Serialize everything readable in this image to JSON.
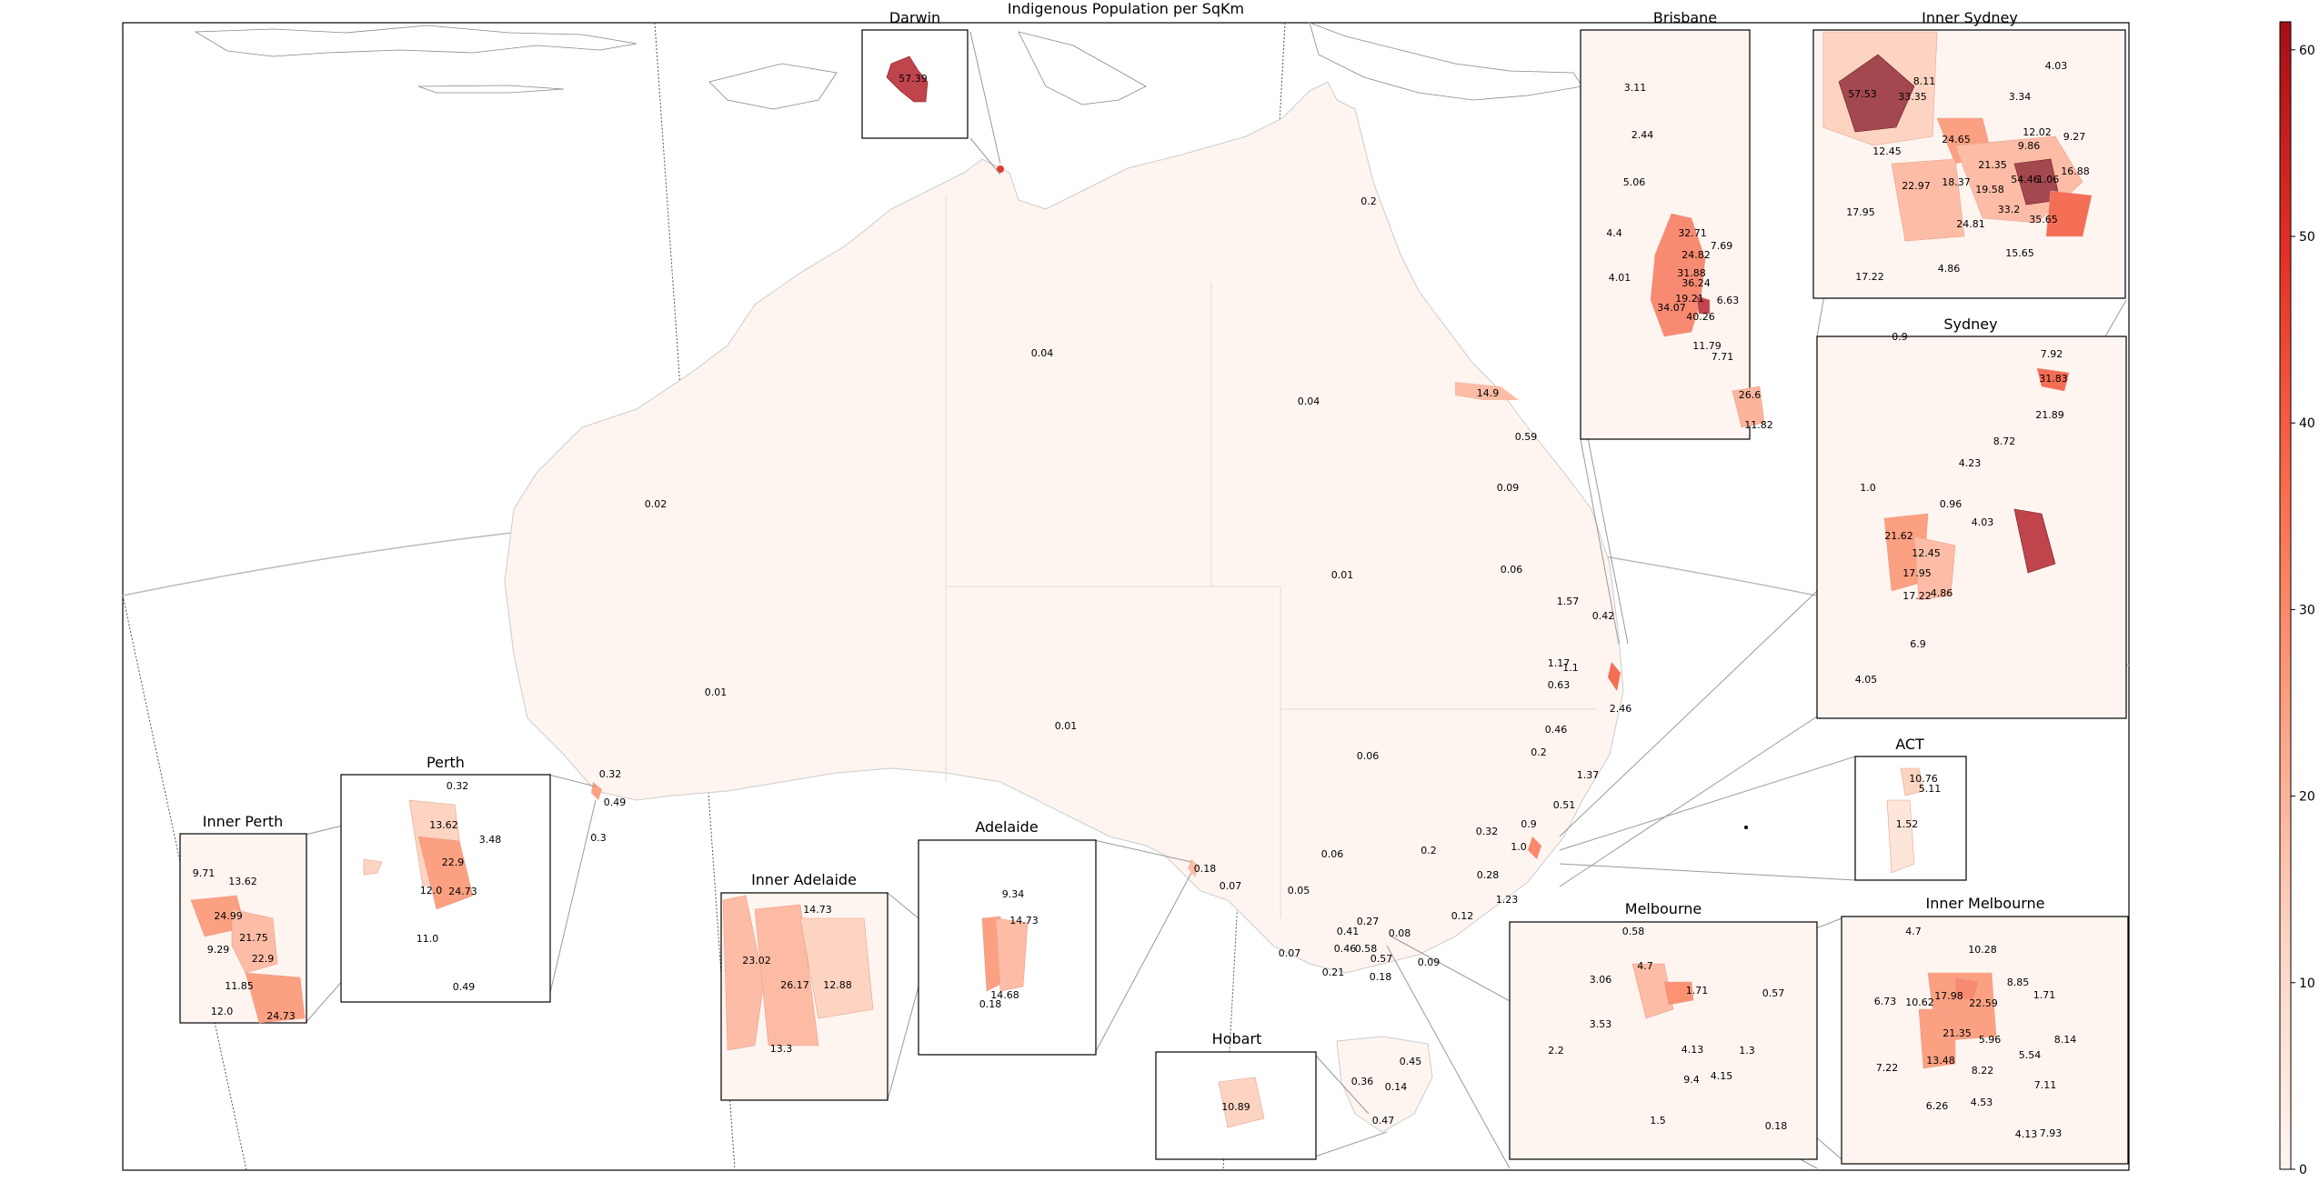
{
  "title": "Indigenous Population per SqKm",
  "colorbar": {
    "min": 0,
    "max": 61.5,
    "ticks": [
      "0",
      "10",
      "20",
      "30",
      "40",
      "50",
      "60"
    ],
    "color_low": "#fff5f0",
    "color_high": "#a50f15"
  },
  "mainland_labels": [
    "0.2",
    "0.04",
    "0.04",
    "0.02",
    "14.9",
    "0.59",
    "0.09",
    "0.01",
    "0.06",
    "1.57",
    "0.42",
    "1.17",
    "1.1",
    "0.63",
    "2.46",
    "0.46",
    "0.01",
    "0.01",
    "0.06",
    "0.2",
    "1.37",
    "0.51",
    "0.32",
    "0.49",
    "0.3",
    "0.9",
    "0.32",
    "1.0",
    "0.28",
    "0.2",
    "0.06",
    "1.23",
    "0.12",
    "0.18",
    "0.07",
    "0.05",
    "0.27",
    "0.41",
    "0.08",
    "0.46",
    "0.58",
    "0.57",
    "0.07",
    "0.21",
    "0.18",
    "0.09",
    "0.45",
    "0.36",
    "0.14",
    "0.47"
  ],
  "insets": [
    {
      "name": "Darwin",
      "labels": [
        "57.39"
      ]
    },
    {
      "name": "Brisbane",
      "labels": [
        "3.11",
        "2.44",
        "5.06",
        "4.4",
        "32.71",
        "24.82",
        "7.69",
        "4.01",
        "31.88",
        "36.24",
        "19.21",
        "34.07",
        "40.26",
        "6.63",
        "11.79",
        "7.71",
        "26.6",
        "11.82"
      ]
    },
    {
      "name": "Inner Sydney",
      "labels": [
        "57.53",
        "8.11",
        "33.35",
        "4.03",
        "3.34",
        "24.65",
        "12.02",
        "12.45",
        "9.86",
        "9.27",
        "21.35",
        "22.97",
        "18.37",
        "19.58",
        "54.46",
        "1.06",
        "16.88",
        "17.95",
        "33.2",
        "24.81",
        "35.65",
        "15.65",
        "17.22",
        "4.86"
      ]
    },
    {
      "name": "Sydney",
      "labels": [
        "0.9",
        "7.92",
        "31.83",
        "21.89",
        "8.72",
        "4.23",
        "1.0",
        "0.96",
        "4.03",
        "21.62",
        "12.45",
        "17.95",
        "17.22",
        "4.86",
        "6.9",
        "4.05"
      ]
    },
    {
      "name": "ACT",
      "labels": [
        "10.76",
        "5.11",
        "1.52"
      ]
    },
    {
      "name": "Perth",
      "labels": [
        "0.32",
        "13.62",
        "3.48",
        "22.9",
        "12.0",
        "24.73",
        "11.0",
        "0.49"
      ]
    },
    {
      "name": "Inner Perth",
      "labels": [
        "9.71",
        "13.62",
        "24.99",
        "21.75",
        "9.29",
        "22.9",
        "11.85",
        "12.0",
        "24.73"
      ]
    },
    {
      "name": "Adelaide",
      "labels": [
        "9.34",
        "14.73",
        "0.18",
        "14.68"
      ]
    },
    {
      "name": "Inner Adelaide",
      "labels": [
        "14.73",
        "23.02",
        "26.17",
        "12.88",
        "13.3"
      ]
    },
    {
      "name": "Hobart",
      "labels": [
        "10.89"
      ]
    },
    {
      "name": "Melbourne",
      "labels": [
        "0.58",
        "4.7",
        "3.06",
        "1.71",
        "0.57",
        "3.53",
        "2.2",
        "4.13",
        "1.3",
        "9.4",
        "4.15",
        "1.5",
        "0.18"
      ]
    },
    {
      "name": "Inner Melbourne",
      "labels": [
        "4.7",
        "10.28",
        "8.85",
        "1.71",
        "6.73",
        "17.98",
        "10.62",
        "22.59",
        "21.35",
        "5.96",
        "5.54",
        "8.14",
        "7.22",
        "13.48",
        "8.22",
        "6.26",
        "4.53",
        "7.11",
        "4.13",
        "7.93"
      ]
    }
  ]
}
